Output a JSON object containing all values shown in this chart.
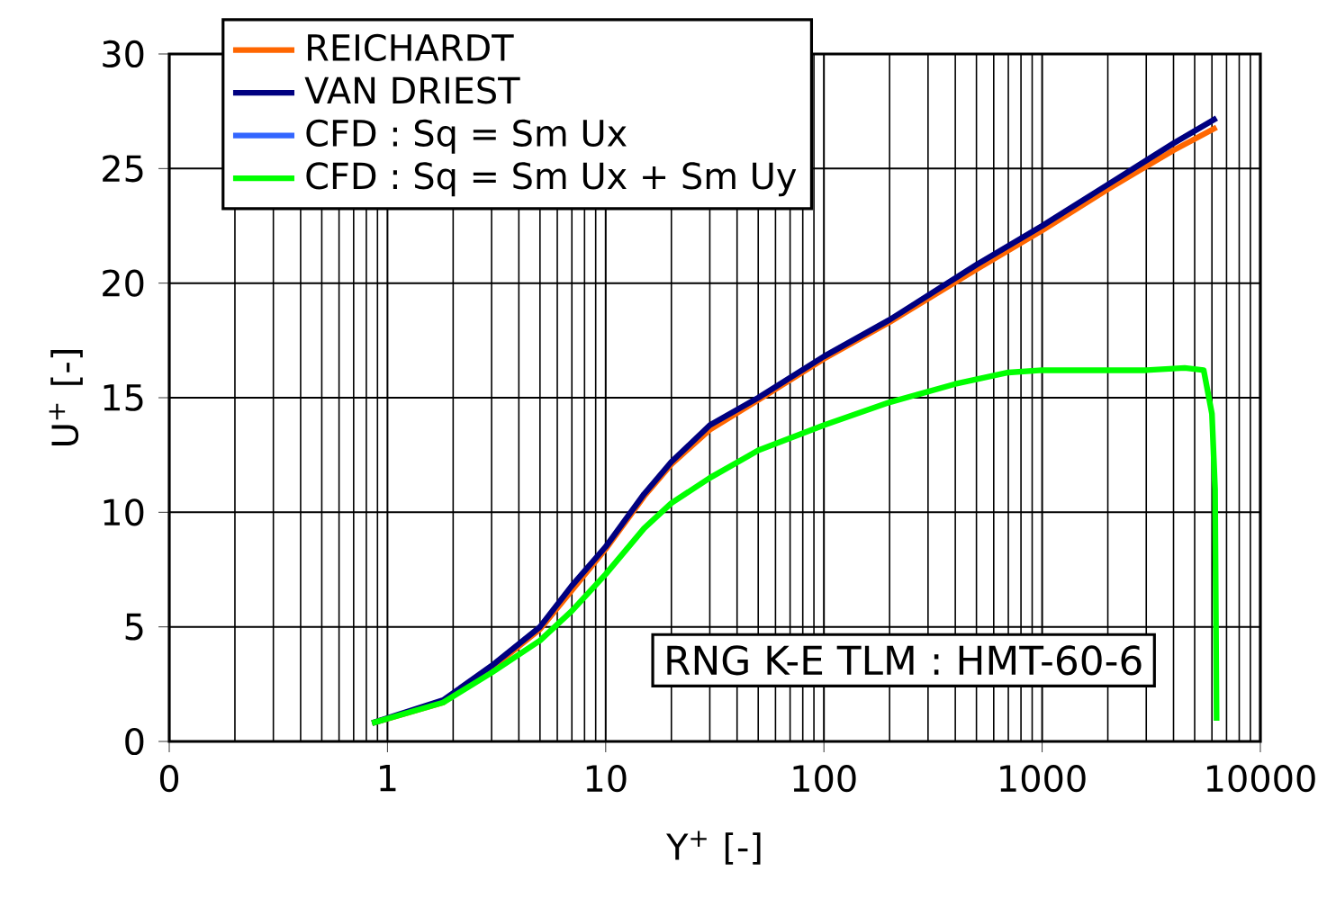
{
  "chart_data": {
    "type": "line",
    "xlabel": "Y$^{+}$ [-]",
    "ylabel": "U$^{+}$ [-]",
    "log": "x",
    "xlim": [
      0.1,
      10000
    ],
    "xticks": [
      {
        "value": 0.1,
        "label": "0"
      },
      1,
      10,
      100,
      1000,
      10000
    ],
    "ylim": [
      0,
      30
    ],
    "yticks": [
      0,
      5,
      10,
      15,
      20,
      25,
      30
    ],
    "grid": true,
    "legend": "top left",
    "marker": "none",
    "line_style": "solid",
    "annotations": [
      "RNG K-E TLM : HMT-60-6"
    ],
    "series": [
      {
        "name": "REICHARDT",
        "color": "#ff6600",
        "x": [
          0.85,
          1.8,
          3,
          5,
          7,
          10,
          15,
          20,
          30,
          50,
          100,
          200,
          500,
          1000,
          2000,
          4000,
          6300
        ],
        "values": [
          0.8,
          1.7,
          3.2,
          4.9,
          6.6,
          8.4,
          10.7,
          12.1,
          13.6,
          14.9,
          16.7,
          18.3,
          20.6,
          22.3,
          24.1,
          25.8,
          26.8
        ]
      },
      {
        "name": "VAN DRIEST",
        "color": "#000080",
        "x": [
          0.85,
          1.8,
          3,
          5,
          7,
          10,
          15,
          20,
          30,
          50,
          100,
          200,
          500,
          1000,
          2000,
          4000,
          6300
        ],
        "values": [
          0.8,
          1.8,
          3.3,
          5,
          6.8,
          8.5,
          10.8,
          12.2,
          13.8,
          15,
          16.8,
          18.4,
          20.8,
          22.5,
          24.3,
          26.1,
          27.2
        ]
      },
      {
        "name": "CFD : Sq = Sm Ux",
        "color": "#3366ff"
      },
      {
        "name": "CFD : Sq = Sm Ux + Sm Uy",
        "color": "#00ff00",
        "x": [
          0.85,
          1.8,
          3,
          5,
          7,
          10,
          15,
          20,
          30,
          50,
          100,
          200,
          400,
          700,
          1000,
          3000,
          4500,
          5500,
          6000,
          6200,
          6300
        ],
        "values": [
          0.8,
          1.7,
          3,
          4.4,
          5.7,
          7.3,
          9.3,
          10.4,
          11.5,
          12.7,
          13.8,
          14.8,
          15.6,
          16.1,
          16.2,
          16.2,
          16.3,
          16.2,
          14.3,
          11,
          0.9
        ]
      }
    ]
  }
}
